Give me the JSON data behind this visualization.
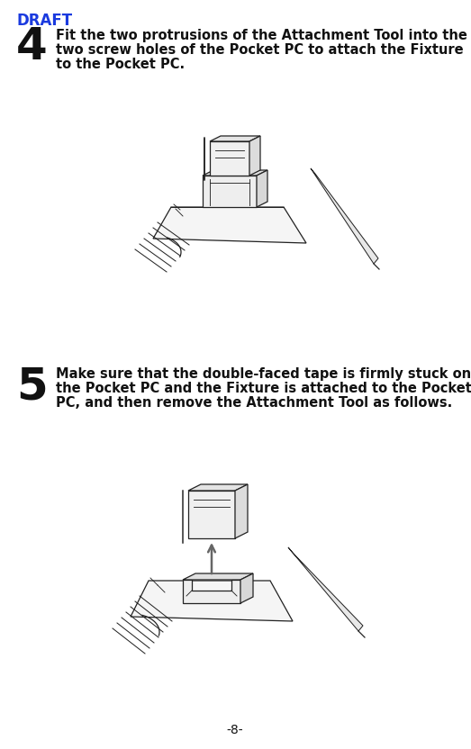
{
  "background_color": "#ffffff",
  "draft_text": "DRAFT",
  "draft_color": "#1a3adf",
  "draft_fontsize": 12,
  "page_number": "-8-",
  "page_number_fontsize": 10,
  "step4_number": "4",
  "step4_number_fontsize": 36,
  "step4_text_lines": [
    "Fit the two protrusions of the Attachment Tool into the",
    "two screw holes of the Pocket PC to attach the Fixture",
    "to the Pocket PC."
  ],
  "step5_number": "5",
  "step5_number_fontsize": 36,
  "step5_text_lines": [
    "Make sure that the double-faced tape is firmly stuck on",
    "the Pocket PC and the Fixture is attached to the Pocket",
    "PC, and then remove the Attachment Tool as follows."
  ],
  "text_fontsize": 10.5,
  "text_color": "#111111",
  "draft_color_hex": "#1a3adf",
  "lc": "#222222",
  "lw": 0.9
}
